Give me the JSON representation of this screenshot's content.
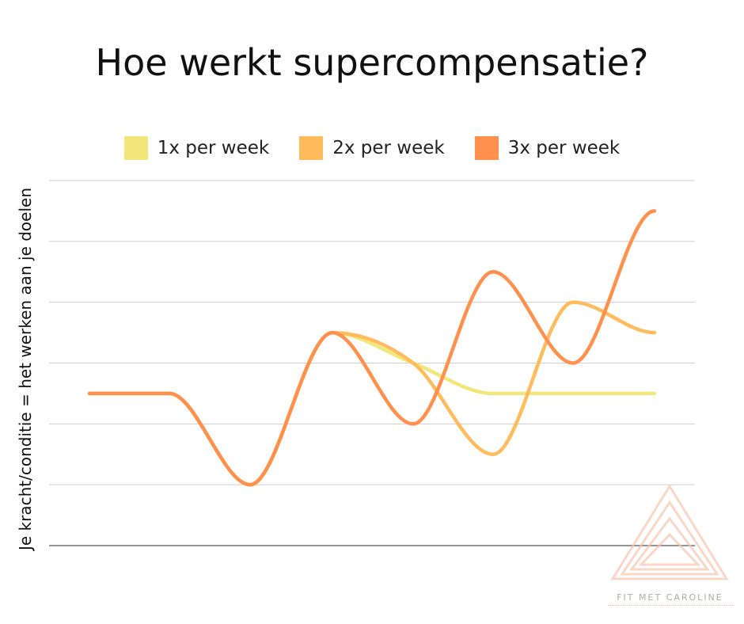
{
  "chart_data": {
    "type": "line",
    "title": "Hoe werkt supercompensatie?",
    "ylabel": "Je kracht/conditie = het werken aan je doelen",
    "xlabel": "",
    "x": [
      0,
      1,
      2,
      3,
      4,
      5,
      6,
      7
    ],
    "ylim": [
      0,
      6
    ],
    "grid": true,
    "legend_position": "top-center",
    "series": [
      {
        "name": "1x per week",
        "color": "#f2e57a",
        "values": [
          2.5,
          2.5,
          1.0,
          3.5,
          3.0,
          2.5,
          2.5,
          2.5
        ]
      },
      {
        "name": "2x per week",
        "color": "#ffbb5c",
        "values": [
          2.5,
          2.5,
          1.0,
          3.5,
          3.0,
          1.5,
          4.0,
          3.5
        ]
      },
      {
        "name": "3x per week",
        "color": "#ff914d",
        "values": [
          2.5,
          2.5,
          1.0,
          3.5,
          2.0,
          4.5,
          3.0,
          5.5
        ]
      }
    ]
  },
  "brand": {
    "text": "FIT MET CAROLINE",
    "color": "#f5c6b0"
  }
}
